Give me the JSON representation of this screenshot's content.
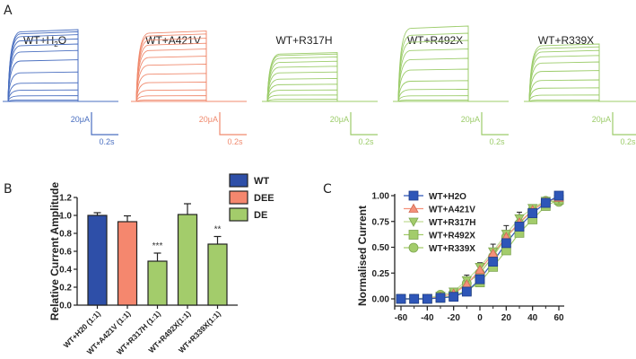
{
  "panel_labels": {
    "a": "A",
    "b": "B",
    "c": "C"
  },
  "chart_data": [
    {
      "type": "line",
      "panel": "A",
      "title": "Current traces",
      "traces": [
        {
          "name": "WT+H2O",
          "title_main": "WT+H",
          "title_sub": "2",
          "title_tail": "O",
          "color": "#4a6fc0",
          "amplitudes": [
            0.02,
            0.08,
            0.16,
            0.26,
            0.41,
            0.58,
            0.71,
            0.8,
            0.87,
            0.93,
            0.97,
            1.0
          ],
          "scale_current": "20μA",
          "scale_time": "0.2s"
        },
        {
          "name": "WT+A421V",
          "title_main": "WT+A421V",
          "color": "#f08a6e",
          "amplitudes": [
            0.02,
            0.08,
            0.16,
            0.27,
            0.39,
            0.52,
            0.63,
            0.73,
            0.81,
            0.88,
            0.94,
            0.98
          ],
          "scale_current": "20μA",
          "scale_time": "0.2s"
        },
        {
          "name": "WT+R317H",
          "title_main": "WT+R317H",
          "color": "#9ccc6a",
          "amplitudes": [
            0.03,
            0.09,
            0.16,
            0.24,
            0.32,
            0.41,
            0.49,
            0.56,
            0.62,
            0.66,
            0.68
          ],
          "scale_current": "20μA",
          "scale_time": "0.2s"
        },
        {
          "name": "WT+R492X",
          "title_main": "WT+R492X",
          "color": "#9ccc6a",
          "amplitudes": [
            0.02,
            0.08,
            0.17,
            0.29,
            0.45,
            0.6,
            0.73,
            0.85,
            0.95,
            1.05
          ],
          "scale_current": "20μA",
          "scale_time": "0.2s"
        },
        {
          "name": "WT+R339X",
          "title_main": "WT+R339X",
          "color": "#9ccc6a",
          "amplitudes": [
            0.02,
            0.09,
            0.19,
            0.3,
            0.43,
            0.55,
            0.64,
            0.71,
            0.76,
            0.8
          ],
          "scale_current": "20μA",
          "scale_time": "0.2s"
        }
      ]
    },
    {
      "type": "bar",
      "panel": "B",
      "ylabel": "Relative Current Amplitude",
      "xlabel": "",
      "ylim": [
        0,
        1.2
      ],
      "yticks": [
        "0.0",
        "0.2",
        "0.4",
        "0.6",
        "0.8",
        "1.0",
        "1.2"
      ],
      "categories": [
        "WT+H20 (1:1)",
        "WT+A421V (1:1)",
        "WT+R317H (1:1)",
        "WT+R492X(1:1)",
        "WT+R339X(1:1)"
      ],
      "values": [
        1.0,
        0.93,
        0.49,
        1.01,
        0.68
      ],
      "errors": [
        0.03,
        0.065,
        0.09,
        0.12,
        0.085
      ],
      "groups": [
        "WT",
        "DEE",
        "DE",
        "DE",
        "DE"
      ],
      "significance": [
        "",
        "",
        "***",
        "",
        "**"
      ],
      "legend": [
        {
          "label": "WT",
          "color": "#2e4fa8"
        },
        {
          "label": "DEE",
          "color": "#f5876e"
        },
        {
          "label": "DE",
          "color": "#a3cc6b"
        }
      ],
      "legend_position": "top-right"
    },
    {
      "type": "scatter",
      "panel": "C",
      "ylabel": "Normalised Current",
      "xlabel": "",
      "xlim": [
        -60,
        60
      ],
      "ylim": [
        0,
        1.0
      ],
      "xticks": [
        "-60",
        "-40",
        "-20",
        "0",
        "20",
        "40",
        "60"
      ],
      "yticks": [
        "0.00",
        "0.25",
        "0.50",
        "0.75",
        "1.00"
      ],
      "x": [
        -60,
        -50,
        -40,
        -30,
        -20,
        -10,
        0,
        10,
        20,
        30,
        40,
        50,
        60
      ],
      "series": [
        {
          "name": "WT+H2O",
          "marker": "square",
          "color": "#2e56b8",
          "line": "#2e56b8",
          "values": [
            0.0,
            0.0,
            0.0,
            0.01,
            0.02,
            0.07,
            0.19,
            0.36,
            0.54,
            0.7,
            0.83,
            0.93,
            1.0
          ]
        },
        {
          "name": "WT+A421V",
          "marker": "triangle-up",
          "color": "#f4917a",
          "line": "#f4917a",
          "values": [
            0.0,
            0.0,
            0.0,
            0.02,
            0.05,
            0.14,
            0.28,
            0.44,
            0.6,
            0.74,
            0.86,
            0.94,
            0.98
          ]
        },
        {
          "name": "WT+R317H",
          "marker": "triangle-down",
          "color": "#a3cc6b",
          "line": "#c2dc96",
          "values": [
            0.0,
            0.0,
            0.01,
            0.03,
            0.07,
            0.18,
            0.31,
            0.46,
            0.63,
            0.78,
            0.88,
            0.95,
            0.97
          ]
        },
        {
          "name": "WT+R492X",
          "marker": "square",
          "color": "#a3cc6b",
          "line": "#a3cc6b",
          "values": [
            0.0,
            0.0,
            0.0,
            0.01,
            0.03,
            0.08,
            0.16,
            0.31,
            0.47,
            0.64,
            0.77,
            0.9,
            0.96
          ]
        },
        {
          "name": "WT+R339X",
          "marker": "circle",
          "color": "#a3cc6b",
          "line": "#a3cc6b",
          "values": [
            0.0,
            0.0,
            0.0,
            0.04,
            0.06,
            0.15,
            0.25,
            0.41,
            0.6,
            0.73,
            0.86,
            0.95,
            0.94
          ]
        }
      ],
      "error_bars_upper": [
        0,
        0,
        0,
        0,
        0,
        0.23,
        0.35,
        0.53,
        0.71,
        0.84,
        0.9,
        0.96,
        1.0
      ],
      "legend_position": "top-left"
    }
  ]
}
